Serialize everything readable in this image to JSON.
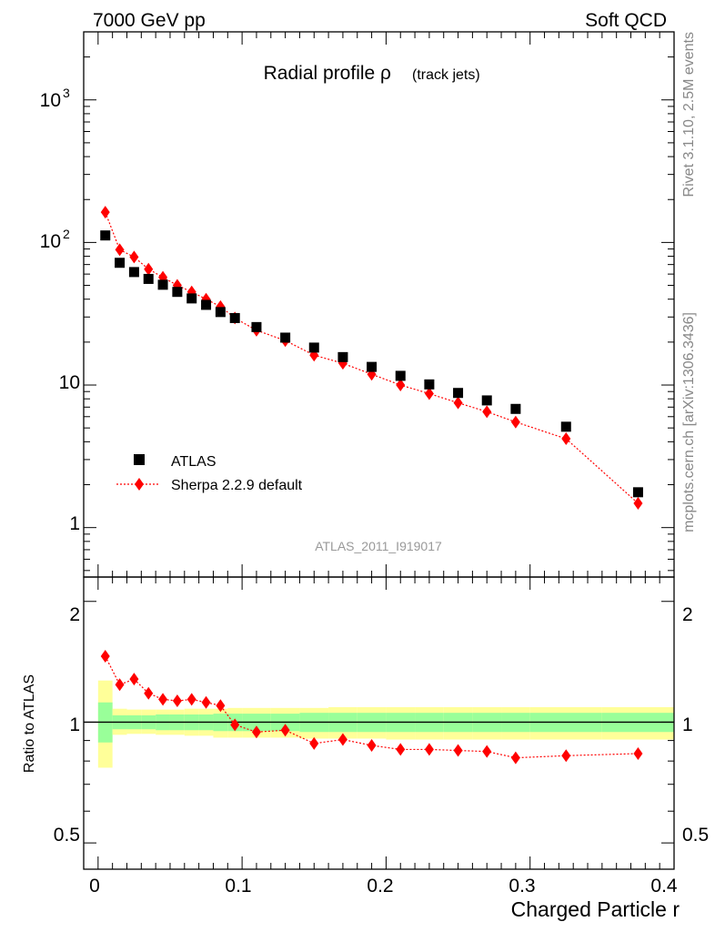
{
  "header": {
    "left": "7000 GeV pp",
    "right": "Soft QCD"
  },
  "side_labels": {
    "version": "Rivet 3.1.10,  2.5M events",
    "site": "mcplots.cern.ch [arXiv:1306.3436]"
  },
  "chart_data": [
    {
      "type": "scatter",
      "title_main": "Radial profile ρ",
      "title_sub": "(track jets)",
      "watermark": "ATLAS_2011_I919017",
      "yscale": "log",
      "ylim": [
        0.45,
        3000
      ],
      "xlim": [
        -0.01,
        0.4
      ],
      "ytick_labels": [
        "1",
        "10",
        "10",
        "2",
        "3"
      ],
      "ytick_values": [
        1,
        10,
        100,
        1000
      ],
      "legend": {
        "placement": "lower-left",
        "entries": [
          "ATLAS",
          "Sherpa 2.2.9 default"
        ]
      },
      "series": [
        {
          "name": "ATLAS",
          "marker": "square",
          "color": "#000000",
          "x": [
            0.005,
            0.015,
            0.025,
            0.035,
            0.045,
            0.055,
            0.065,
            0.075,
            0.085,
            0.095,
            0.11,
            0.13,
            0.15,
            0.17,
            0.19,
            0.21,
            0.23,
            0.25,
            0.27,
            0.29,
            0.325,
            0.375
          ],
          "y": [
            112,
            72,
            62,
            55.5,
            50.5,
            45,
            40.5,
            36.5,
            32.5,
            29.5,
            25.5,
            21.5,
            18.3,
            15.7,
            13.4,
            11.6,
            10.1,
            8.8,
            7.8,
            6.8,
            5.1,
            1.77
          ]
        },
        {
          "name": "Sherpa 2.2.9 default",
          "marker": "diamond",
          "color": "#ff0000",
          "linestyle": "dotted",
          "x": [
            0.005,
            0.015,
            0.025,
            0.035,
            0.045,
            0.055,
            0.065,
            0.075,
            0.085,
            0.095,
            0.11,
            0.13,
            0.15,
            0.17,
            0.19,
            0.21,
            0.23,
            0.25,
            0.27,
            0.29,
            0.325,
            0.375
          ],
          "y": [
            163,
            89,
            79,
            65,
            57,
            50,
            45,
            40,
            35.5,
            29.5,
            24.2,
            20.5,
            16.2,
            14.2,
            11.9,
            10.0,
            8.7,
            7.5,
            6.5,
            5.5,
            4.2,
            1.48
          ]
        }
      ]
    },
    {
      "type": "scatter",
      "ylabel": "Ratio to ATLAS",
      "xlabel": "Charged Particle r",
      "ylim": [
        0.43,
        2.3
      ],
      "xlim": [
        -0.01,
        0.4
      ],
      "ytick_labels": [
        "0.5",
        "1",
        "2"
      ],
      "ytick_values": [
        0.5,
        1,
        2
      ],
      "xtick_labels": [
        "0",
        "0.1",
        "0.2",
        "0.3",
        "0.4"
      ],
      "xtick_values": [
        0,
        0.1,
        0.2,
        0.3,
        0.4
      ],
      "reference_line": 1,
      "bands": {
        "x_edges": [
          0,
          0.01,
          0.02,
          0.03,
          0.04,
          0.05,
          0.06,
          0.07,
          0.08,
          0.09,
          0.1,
          0.12,
          0.14,
          0.16,
          0.18,
          0.2,
          0.22,
          0.24,
          0.26,
          0.28,
          0.3,
          0.35,
          0.4
        ],
        "outer_color": "#ffff99",
        "inner_color": "#99ff99",
        "outer_lo": [
          0.77,
          0.93,
          0.935,
          0.935,
          0.93,
          0.93,
          0.925,
          0.925,
          0.915,
          0.915,
          0.915,
          0.915,
          0.91,
          0.91,
          0.91,
          0.905,
          0.905,
          0.905,
          0.905,
          0.905,
          0.905,
          0.905
        ],
        "outer_hi": [
          1.27,
          1.08,
          1.075,
          1.075,
          1.075,
          1.075,
          1.08,
          1.08,
          1.08,
          1.085,
          1.085,
          1.085,
          1.085,
          1.09,
          1.09,
          1.09,
          1.09,
          1.09,
          1.09,
          1.09,
          1.09,
          1.09
        ],
        "inner_lo": [
          0.89,
          0.96,
          0.96,
          0.96,
          0.955,
          0.955,
          0.955,
          0.955,
          0.95,
          0.95,
          0.95,
          0.95,
          0.945,
          0.945,
          0.945,
          0.945,
          0.945,
          0.945,
          0.945,
          0.945,
          0.945,
          0.945
        ],
        "inner_hi": [
          1.12,
          1.04,
          1.04,
          1.04,
          1.045,
          1.045,
          1.045,
          1.045,
          1.05,
          1.05,
          1.05,
          1.05,
          1.055,
          1.055,
          1.055,
          1.055,
          1.055,
          1.055,
          1.055,
          1.055,
          1.055,
          1.055
        ]
      },
      "series": [
        {
          "name": "Sherpa 2.2.9 default",
          "marker": "diamond",
          "color": "#ff0000",
          "linestyle": "dotted",
          "x": [
            0.005,
            0.015,
            0.025,
            0.035,
            0.045,
            0.055,
            0.065,
            0.075,
            0.085,
            0.095,
            0.11,
            0.13,
            0.15,
            0.17,
            0.19,
            0.21,
            0.23,
            0.25,
            0.27,
            0.29,
            0.325,
            0.375
          ],
          "y": [
            1.46,
            1.24,
            1.28,
            1.18,
            1.14,
            1.13,
            1.14,
            1.12,
            1.1,
            0.985,
            0.945,
            0.955,
            0.885,
            0.905,
            0.875,
            0.855,
            0.855,
            0.85,
            0.845,
            0.815,
            0.825,
            0.835
          ]
        }
      ]
    }
  ]
}
